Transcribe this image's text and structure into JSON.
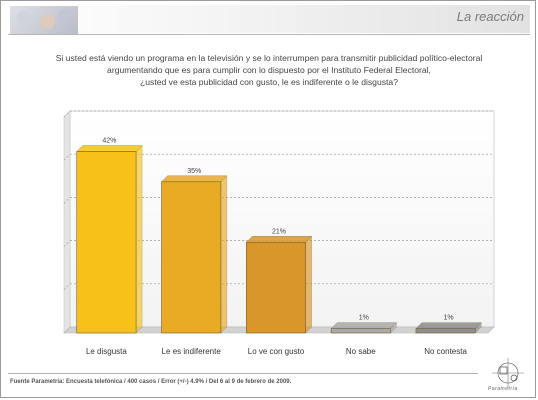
{
  "header": {
    "title": "La reacción"
  },
  "question": {
    "line1": "Si usted está viendo un programa en la televisión y se lo interrumpen para transmitir publicidad político-electoral",
    "line2": "argumentando que es para cumplir con lo dispuesto por el Instituto Federal Electoral,",
    "line3": "¿usted  ve esta publicidad con gusto, le es indiferente o le disgusta?"
  },
  "chart_data": {
    "type": "bar",
    "title": "",
    "xlabel": "",
    "ylabel": "",
    "ylim": [
      0,
      50
    ],
    "grid": true,
    "categories": [
      "Le disgusta",
      "Le es indiferente",
      "Lo ve con gusto",
      "No sabe",
      "No contesta"
    ],
    "values": [
      42,
      35,
      21,
      1,
      1
    ],
    "value_labels": [
      "42%",
      "35%",
      "21%",
      "1%",
      "1%"
    ],
    "colors": [
      "#f6c21a",
      "#e9aa24",
      "#d9962a",
      "#a9a9a9",
      "#8e8e8e"
    ]
  },
  "footer": {
    "source": "Fuente Parametría: Encuesta telefónica / 400 casos / Error (+/-) 4.9% / Del 6 al 9 de febrero de 2009.",
    "logo_text": "Parametría"
  }
}
